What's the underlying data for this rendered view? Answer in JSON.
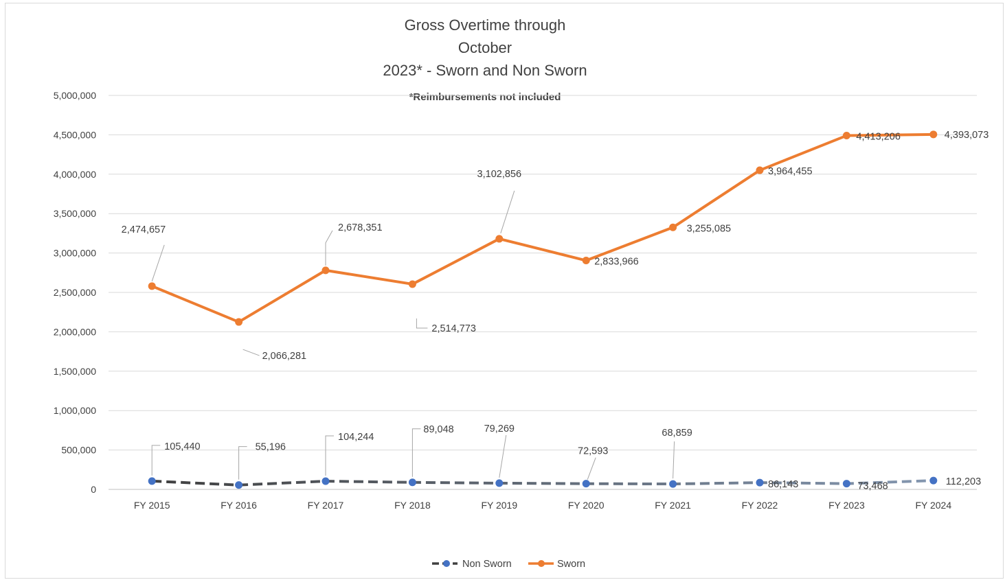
{
  "chart_data": {
    "type": "line",
    "title_lines": [
      "Gross Overtime through",
      "October",
      "2023* - Sworn and Non Sworn"
    ],
    "subtitle": "*Reimbursements not included",
    "categories": [
      "FY 2015",
      "FY 2016",
      "FY 2017",
      "FY 2018",
      "FY 2019",
      "FY 2020",
      "FY 2021",
      "FY 2022",
      "FY 2023",
      "FY 2024"
    ],
    "ylim": [
      0,
      5000000
    ],
    "ytick_labels": [
      "0",
      "500,000",
      "1,000,000",
      "1,500,000",
      "2,000,000",
      "2,500,000",
      "3,000,000",
      "3,500,000",
      "4,000,000",
      "4,500,000",
      "5,000,000"
    ],
    "grid": true,
    "legend_position": "bottom",
    "series": [
      {
        "name": "Non Sworn",
        "color": "#4472c4",
        "line_colors": [
          "#404040",
          "#8497b0"
        ],
        "line_style": "dashed",
        "values": [
          105440,
          55196,
          104244,
          89048,
          79269,
          72593,
          68859,
          86143,
          73468,
          112203
        ],
        "labels": [
          "105,440",
          "55,196",
          "104,244",
          "89,048",
          "79,269",
          "72,593",
          "68,859",
          "86,143",
          "73,468",
          "112,203"
        ]
      },
      {
        "name": "Sworn",
        "color": "#ed7d31",
        "line_style": "solid",
        "values": [
          2580000,
          2125000,
          2780000,
          2605000,
          3180000,
          2905000,
          3325000,
          4050000,
          4490000,
          4505000
        ],
        "labels": [
          "2,474,657",
          "2,066,281",
          "2,678,351",
          "2,514,773",
          "3,102,856",
          "2,833,966",
          "3,255,085",
          "3,964,455",
          "4,413,206",
          "4,393,073"
        ]
      }
    ]
  }
}
